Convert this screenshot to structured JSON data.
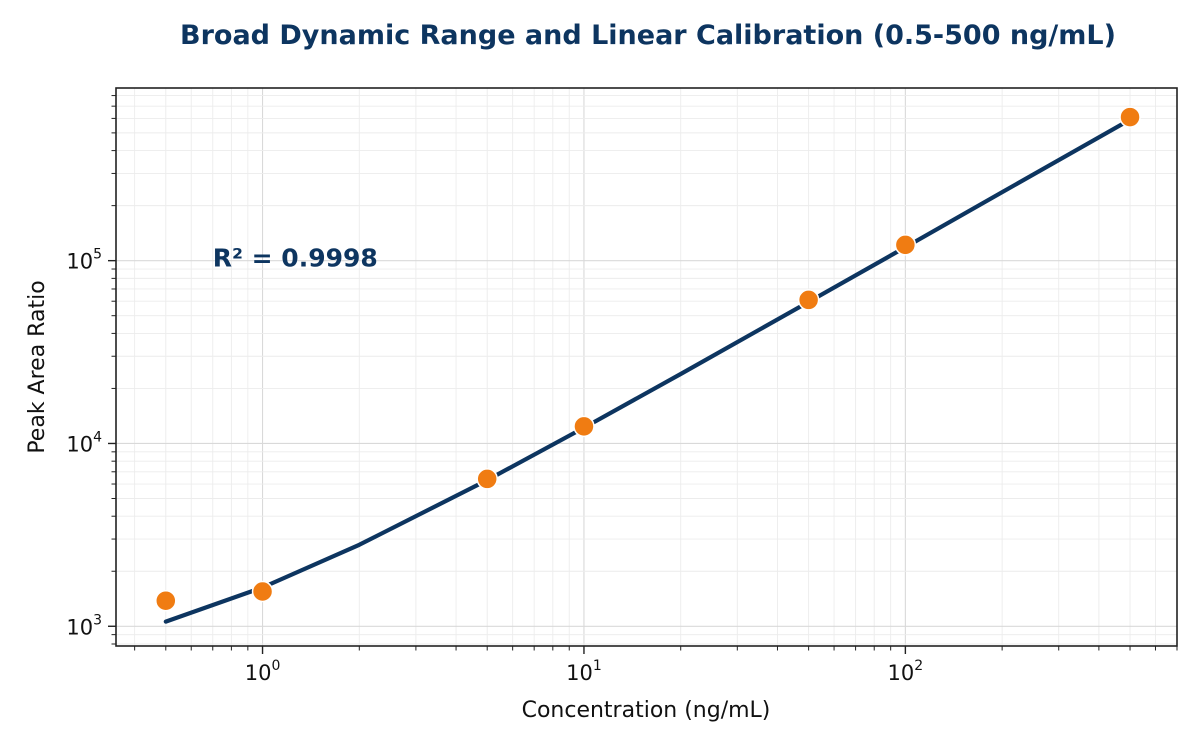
{
  "chart_data": {
    "type": "scatter",
    "title": "Broad Dynamic Range and Linear Calibration (0.5-500 ng/mL)",
    "xlabel": "Concentration (ng/mL)",
    "ylabel": "Peak Area Ratio",
    "x_scale": "log",
    "y_scale": "log",
    "xlim": [
      0.35,
      700
    ],
    "ylim": [
      780,
      880000
    ],
    "x_ticks": [
      {
        "value": 1,
        "base": "10",
        "exp": "0"
      },
      {
        "value": 10,
        "base": "10",
        "exp": "1"
      },
      {
        "value": 100,
        "base": "10",
        "exp": "2"
      }
    ],
    "y_ticks": [
      {
        "value": 1000,
        "base": "10",
        "exp": "3"
      },
      {
        "value": 10000,
        "base": "10",
        "exp": "4"
      },
      {
        "value": 100000,
        "base": "10",
        "exp": "5"
      }
    ],
    "grid": true,
    "points": {
      "x": [
        0.5,
        1,
        5,
        10,
        50,
        100,
        500
      ],
      "y": [
        1380,
        1550,
        6400,
        12400,
        61000,
        122000,
        610000
      ],
      "color": "#f07c12"
    },
    "fit_line": {
      "x": [
        0.5,
        1,
        2,
        5,
        10,
        20,
        50,
        100,
        200,
        500
      ],
      "y": [
        1060,
        1630,
        2790,
        6300,
        12200,
        24000,
        59500,
        118500,
        237000,
        590000
      ],
      "color": "#0d3560"
    },
    "annotations": [
      {
        "text": "R² = 0.9998",
        "x": 0.7,
        "y": 104000
      }
    ],
    "title_color": "#0d3560"
  }
}
